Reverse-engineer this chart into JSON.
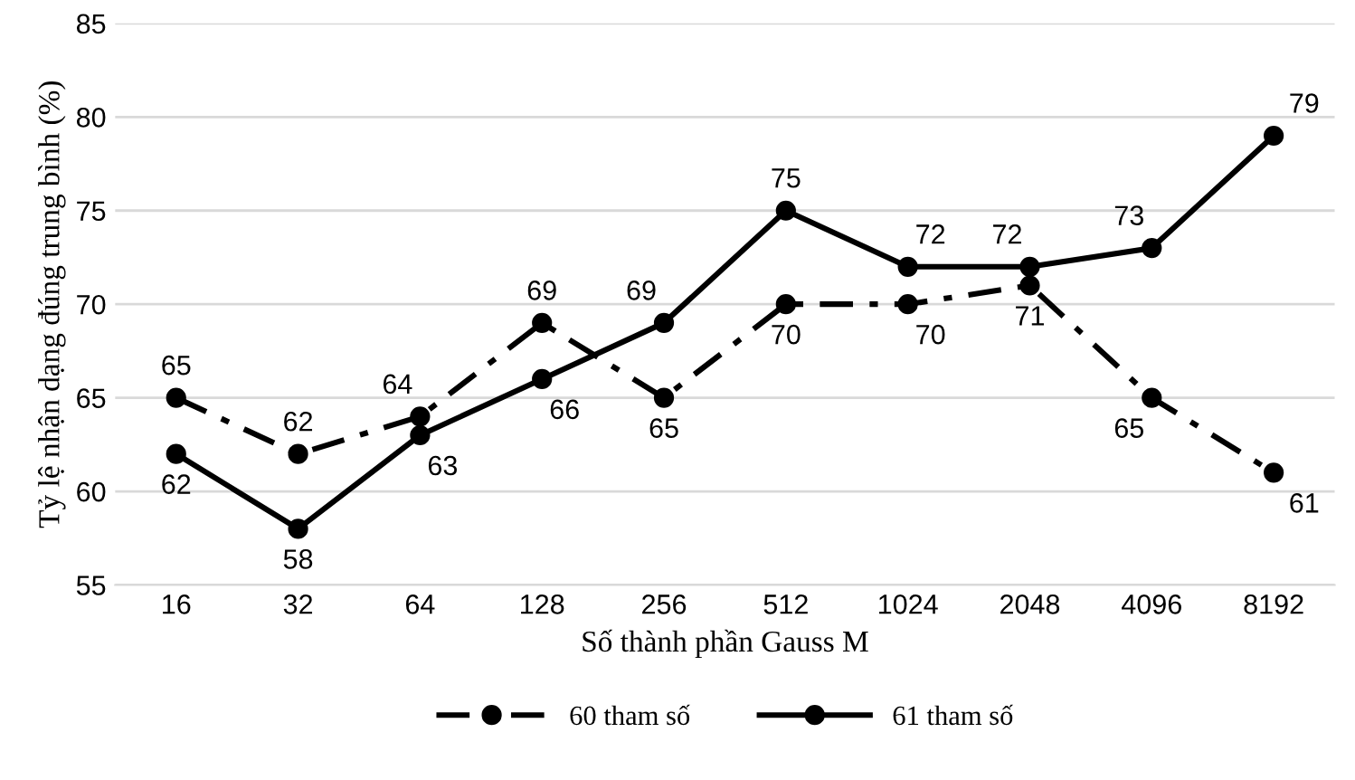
{
  "chart_data": {
    "type": "line",
    "xlabel": "Số thành phần Gauss M",
    "ylabel": "Tỷ lệ nhận dạng đúng trung bình (%)",
    "categories": [
      "16",
      "32",
      "64",
      "128",
      "256",
      "512",
      "1024",
      "2048",
      "4096",
      "8192"
    ],
    "series": [
      {
        "name": "60 tham số",
        "color": "#000000",
        "line_style": "dashdot",
        "marker": "circle",
        "values": [
          65,
          62,
          64,
          69,
          65,
          70,
          70,
          71,
          65,
          61
        ]
      },
      {
        "name": "61 tham số",
        "color": "#000000",
        "line_style": "solid",
        "marker": "circle",
        "values": [
          62,
          58,
          63,
          66,
          69,
          75,
          72,
          72,
          73,
          79
        ]
      }
    ],
    "ylim": [
      55,
      85
    ],
    "yticks": [
      55,
      60,
      65,
      70,
      75,
      80,
      85
    ],
    "grid": "y",
    "legend": "bottom",
    "data_labels": true
  }
}
